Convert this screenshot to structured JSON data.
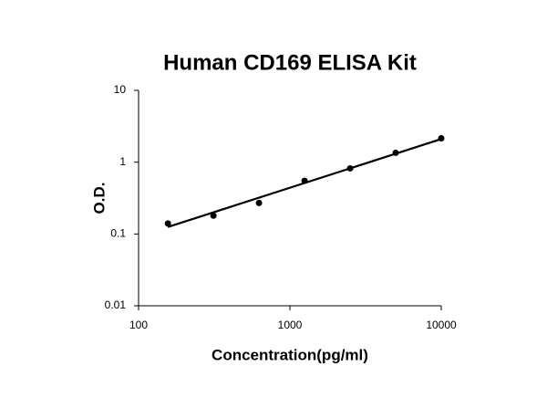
{
  "chart_data": {
    "type": "scatter",
    "title": "Human CD169 ELISA Kit",
    "x_label": "Concentration(pg/ml)",
    "y_label": "O.D.",
    "x": [
      156.25,
      312.5,
      625,
      1250,
      2500,
      5000,
      10000
    ],
    "values": [
      0.14,
      0.18,
      0.27,
      0.55,
      0.82,
      1.35,
      2.15
    ],
    "color": "#000000",
    "trendline": {
      "x": [
        156.25,
        10000
      ],
      "values": [
        0.125,
        2.1
      ],
      "color": "#000000"
    },
    "xlim": [
      100,
      10000
    ],
    "ylim": [
      0.01,
      10
    ],
    "xticks": [
      100,
      1000,
      10000
    ],
    "yticks": [
      0.01,
      0.1,
      1,
      10
    ],
    "xscale": "log",
    "yscale": "log",
    "grid": false
  }
}
